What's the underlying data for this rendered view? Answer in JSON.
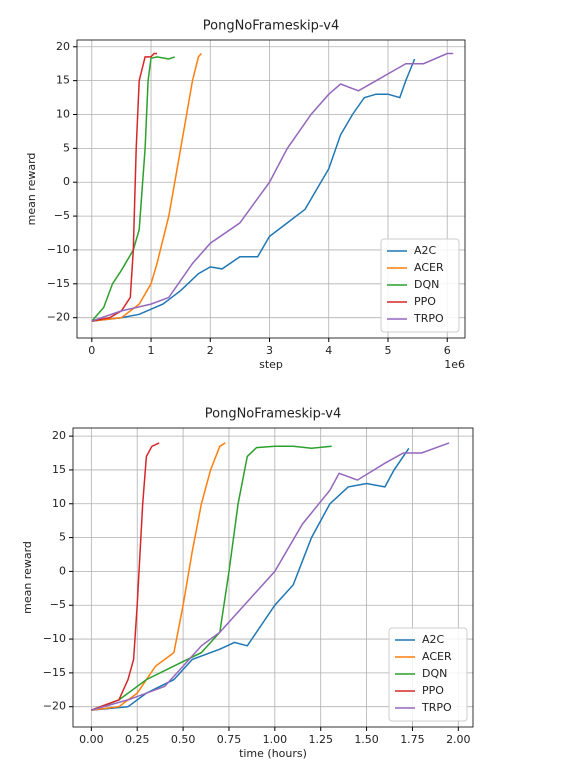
{
  "chart_data": [
    {
      "type": "line",
      "title": "PongNoFrameskip-v4",
      "xlabel": "step",
      "ylabel": "mean reward",
      "x_offset_label": "1e6",
      "xlim": [
        -0.25,
        6.3
      ],
      "ylim": [
        -23,
        21
      ],
      "xticks": [
        0,
        1,
        2,
        3,
        4,
        5,
        6
      ],
      "yticks": [
        {
          "value": -20,
          "label": "−20"
        },
        {
          "value": -15,
          "label": "−15"
        },
        {
          "value": -10,
          "label": "−10"
        },
        {
          "value": -5,
          "label": "−5"
        },
        0,
        5,
        10,
        15,
        20
      ],
      "grid": true,
      "legend": "lower right",
      "series": [
        {
          "name": "A2C",
          "color": "#1f77b4",
          "x": [
            0,
            0.5,
            0.8,
            1.2,
            1.5,
            1.8,
            2.0,
            2.2,
            2.5,
            2.8,
            3.0,
            3.3,
            3.6,
            3.8,
            4.0,
            4.2,
            4.4,
            4.6,
            4.8,
            5.0,
            5.2,
            5.3,
            5.45
          ],
          "values": [
            -20.5,
            -20,
            -19.5,
            -18,
            -16,
            -13.5,
            -12.5,
            -12.8,
            -11,
            -11,
            -8,
            -6,
            -4,
            -1,
            2,
            7,
            10,
            12.5,
            13,
            13,
            12.5,
            15,
            18.2
          ]
        },
        {
          "name": "ACER",
          "color": "#ff7f0e",
          "x": [
            0,
            0.5,
            0.8,
            1.0,
            1.1,
            1.3,
            1.5,
            1.6,
            1.7,
            1.8,
            1.85
          ],
          "values": [
            -20.5,
            -20,
            -18,
            -15,
            -12,
            -5,
            5,
            10,
            15,
            18.5,
            19
          ]
        },
        {
          "name": "DQN",
          "color": "#2ca02c",
          "x": [
            0,
            0.2,
            0.35,
            0.5,
            0.7,
            0.8,
            0.9,
            0.95,
            1.0,
            1.1,
            1.3,
            1.4
          ],
          "values": [
            -20.5,
            -18.5,
            -15,
            -13,
            -10,
            -7,
            5,
            15,
            18.3,
            18.5,
            18.2,
            18.5
          ]
        },
        {
          "name": "PPO",
          "color": "#d62728",
          "x": [
            0,
            0.3,
            0.5,
            0.65,
            0.7,
            0.75,
            0.8,
            0.9,
            1.0,
            1.05,
            1.1
          ],
          "values": [
            -20.5,
            -20,
            -19,
            -17,
            -10,
            5,
            15,
            18.5,
            18.5,
            19,
            19
          ]
        },
        {
          "name": "TRPO",
          "color": "#9467bd",
          "x": [
            0,
            0.5,
            1.0,
            1.3,
            1.7,
            2.0,
            2.5,
            3.0,
            3.3,
            3.7,
            4.0,
            4.2,
            4.5,
            5.0,
            5.3,
            5.6,
            6.0,
            6.1
          ],
          "values": [
            -20.5,
            -19,
            -18,
            -17,
            -12,
            -9,
            -6,
            0,
            5,
            10,
            13,
            14.5,
            13.5,
            16,
            17.5,
            17.5,
            19,
            19
          ]
        }
      ]
    },
    {
      "type": "line",
      "title": "PongNoFrameskip-v4",
      "xlabel": "time (hours)",
      "ylabel": "mean reward",
      "xlim": [
        -0.1,
        2.08
      ],
      "ylim": [
        -23,
        21.2
      ],
      "xticks": [
        {
          "value": 0,
          "label": "0.00"
        },
        {
          "value": 0.25,
          "label": "0.25"
        },
        {
          "value": 0.5,
          "label": "0.50"
        },
        {
          "value": 0.75,
          "label": "0.75"
        },
        {
          "value": 1,
          "label": "1.00"
        },
        {
          "value": 1.25,
          "label": "1.25"
        },
        {
          "value": 1.5,
          "label": "1.50"
        },
        {
          "value": 1.75,
          "label": "1.75"
        },
        {
          "value": 2,
          "label": "2.00"
        }
      ],
      "yticks": [
        {
          "value": -20,
          "label": "−20"
        },
        {
          "value": -15,
          "label": "−15"
        },
        {
          "value": -10,
          "label": "−10"
        },
        {
          "value": -5,
          "label": "−5"
        },
        0,
        5,
        10,
        15,
        20
      ],
      "grid": true,
      "legend": "lower right",
      "series": [
        {
          "name": "A2C",
          "color": "#1f77b4",
          "x": [
            0,
            0.2,
            0.3,
            0.45,
            0.55,
            0.7,
            0.78,
            0.85,
            1.0,
            1.1,
            1.2,
            1.3,
            1.4,
            1.5,
            1.6,
            1.65,
            1.73
          ],
          "values": [
            -20.5,
            -20,
            -18,
            -16,
            -13,
            -11.5,
            -10.5,
            -11,
            -5,
            -2,
            5,
            10,
            12.5,
            13,
            12.5,
            15,
            18.2
          ]
        },
        {
          "name": "ACER",
          "color": "#ff7f0e",
          "x": [
            0,
            0.15,
            0.25,
            0.35,
            0.45,
            0.5,
            0.55,
            0.6,
            0.65,
            0.7,
            0.73
          ],
          "values": [
            -20.5,
            -20,
            -18,
            -14,
            -12,
            -5,
            3,
            10,
            15,
            18.5,
            19
          ]
        },
        {
          "name": "DQN",
          "color": "#2ca02c",
          "x": [
            0,
            0.15,
            0.3,
            0.45,
            0.6,
            0.7,
            0.75,
            0.8,
            0.85,
            0.9,
            1.0,
            1.1,
            1.2,
            1.31
          ],
          "values": [
            -20.5,
            -19,
            -16,
            -14,
            -12,
            -9,
            0,
            10,
            17,
            18.3,
            18.5,
            18.5,
            18.2,
            18.5
          ]
        },
        {
          "name": "PPO",
          "color": "#d62728",
          "x": [
            0,
            0.15,
            0.2,
            0.23,
            0.25,
            0.28,
            0.3,
            0.33,
            0.37
          ],
          "values": [
            -20.5,
            -19,
            -16,
            -13,
            -5,
            10,
            17,
            18.5,
            19
          ]
        },
        {
          "name": "TRPO",
          "color": "#9467bd",
          "x": [
            0,
            0.2,
            0.4,
            0.5,
            0.6,
            0.7,
            0.8,
            1.0,
            1.15,
            1.3,
            1.35,
            1.45,
            1.6,
            1.7,
            1.8,
            1.95
          ],
          "values": [
            -20.5,
            -19,
            -17,
            -14,
            -11,
            -9,
            -6,
            0,
            7,
            12,
            14.5,
            13.5,
            16,
            17.5,
            17.5,
            19
          ]
        }
      ]
    }
  ]
}
